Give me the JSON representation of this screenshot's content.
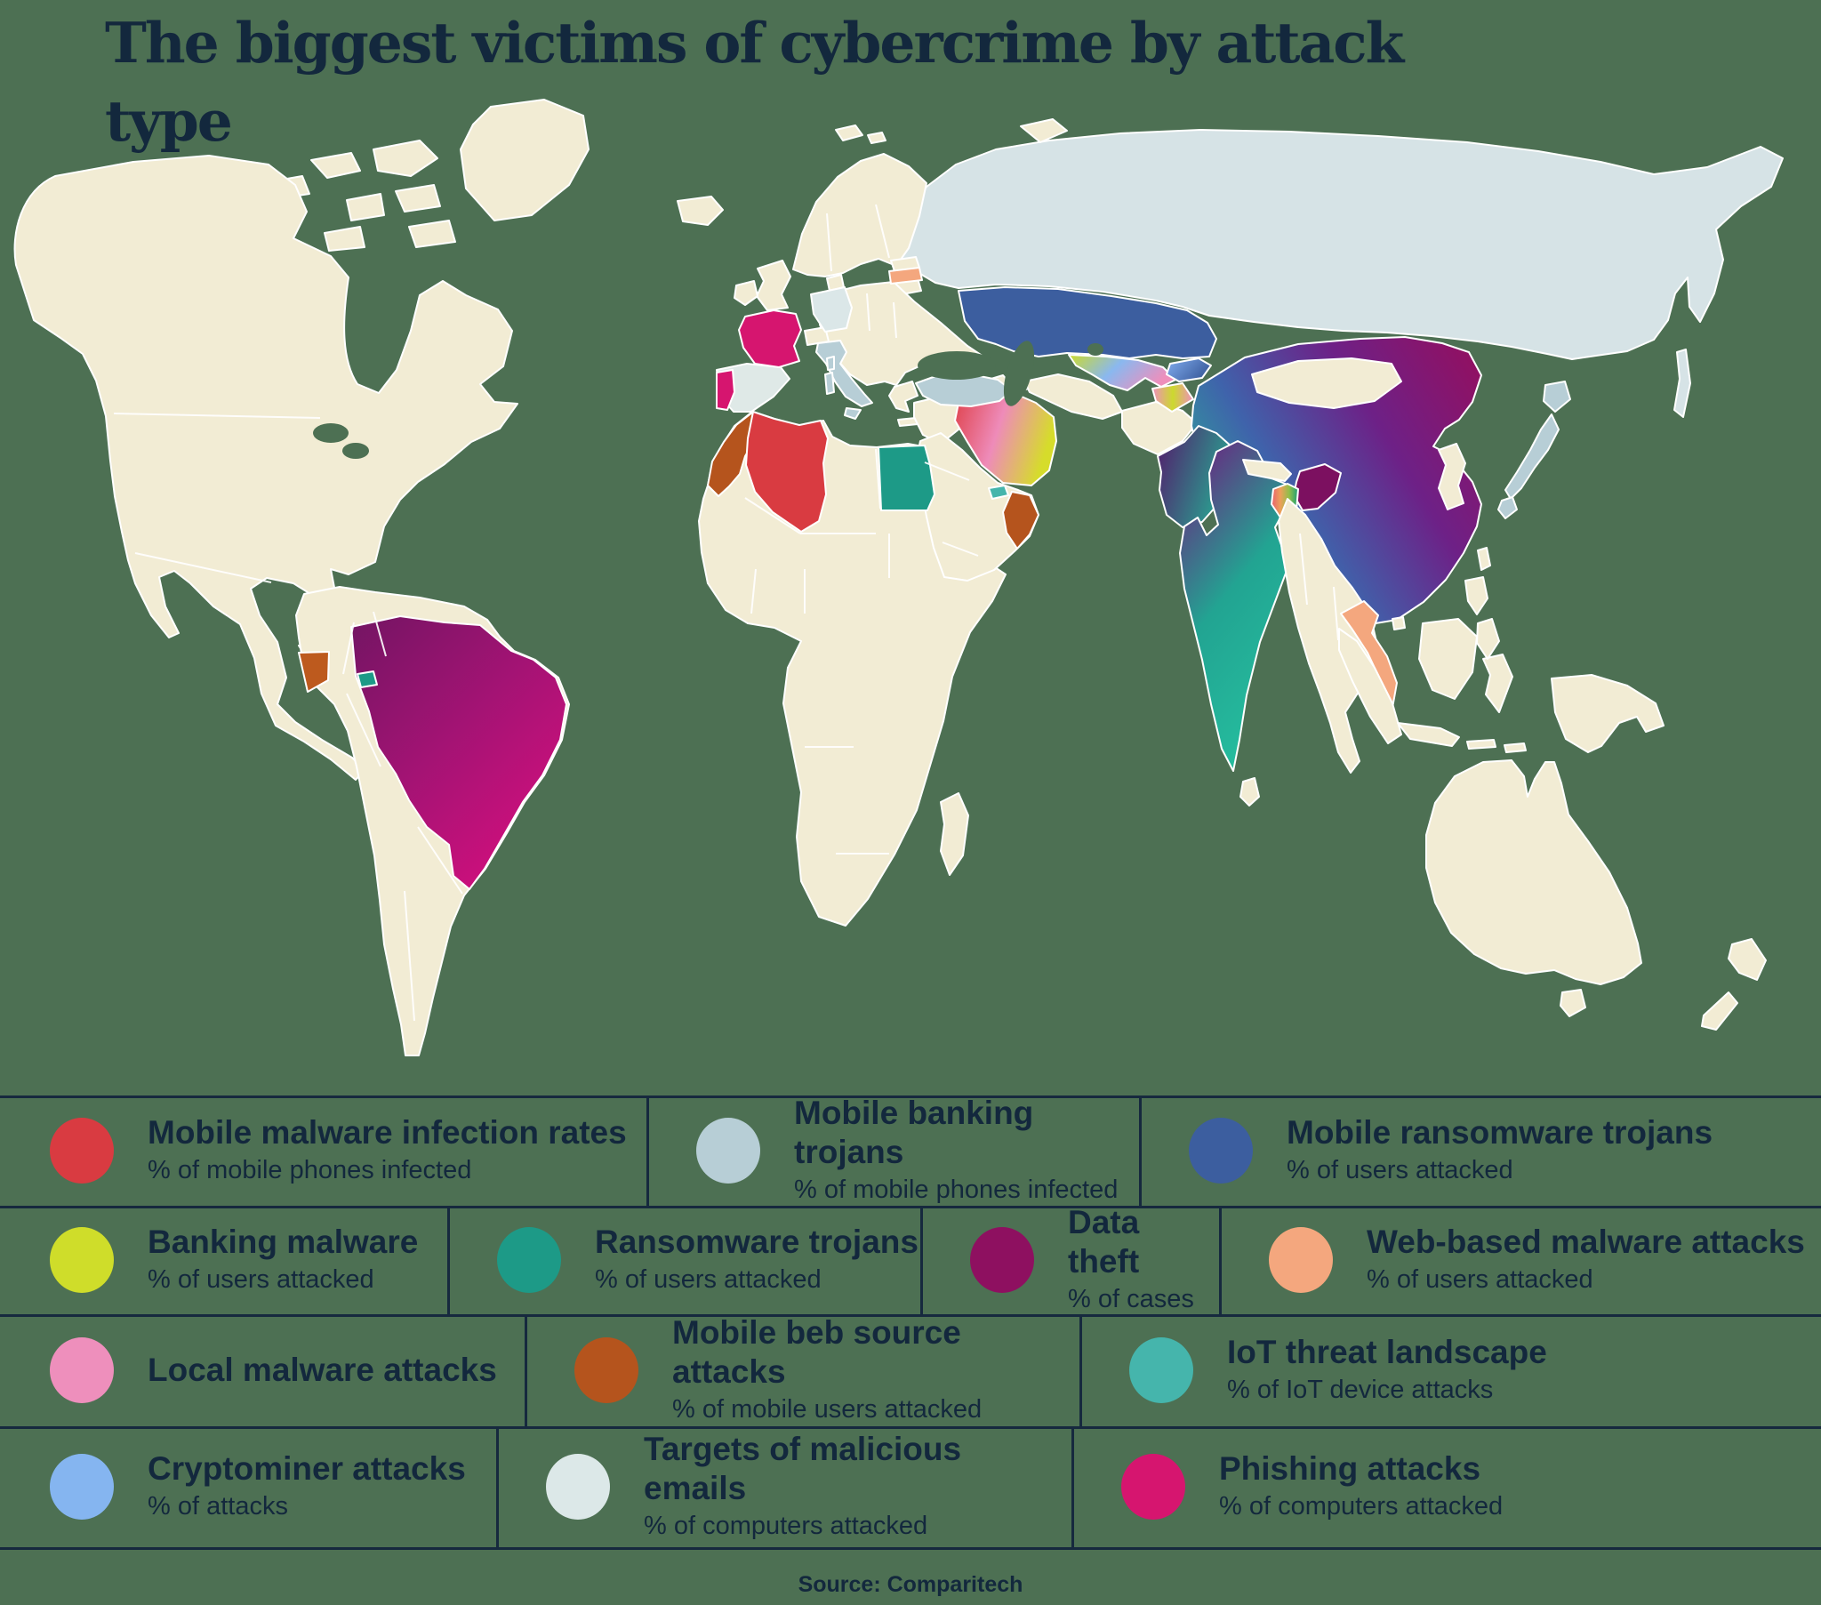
{
  "title": "The biggest victims of cybercrime by attack type",
  "source": "Source: Comparitech",
  "colors": {
    "background": "#4d7053",
    "land": "#f2ecd4",
    "country_border": "#ffffff",
    "ink": "#13283d",
    "grid_line": "#16293e"
  },
  "legend": {
    "rows": [
      {
        "cells": [
          {
            "key": "mobile-malware-infection-rates",
            "color": "#d93b41",
            "title": "Mobile malware infection rates",
            "subtitle": "% of mobile phones infected"
          },
          {
            "key": "mobile-banking-trojans",
            "color": "#b7ced6",
            "title": "Mobile banking trojans",
            "subtitle": "% of mobile phones infected"
          },
          {
            "key": "mobile-ransomware-trojans",
            "color": "#3c5e9f",
            "title": "Mobile ransomware trojans",
            "subtitle": "% of users attacked"
          }
        ]
      },
      {
        "cells": [
          {
            "key": "banking-malware",
            "color": "#cfdd2a",
            "title": "Banking malware",
            "subtitle": "% of users attacked"
          },
          {
            "key": "ransomware-trojans",
            "color": "#1d9a87",
            "title": "Ransomware trojans",
            "subtitle": "% of users attacked"
          },
          {
            "key": "data-theft",
            "color": "#8e1060",
            "title": "Data theft",
            "subtitle": "% of cases"
          },
          {
            "key": "web-based-malware-attacks",
            "color": "#f4a77e",
            "title": "Web-based malware attacks",
            "subtitle": "% of users attacked"
          }
        ]
      },
      {
        "cells": [
          {
            "key": "local-malware-attacks",
            "color": "#ee8fbc",
            "title": "Local malware attacks",
            "subtitle": ""
          },
          {
            "key": "mobile-beb-source-attacks",
            "color": "#b5541d",
            "title": "Mobile beb source attacks",
            "subtitle": "% of mobile users attacked"
          },
          {
            "key": "iot-threat-landscape",
            "color": "#45b5ac",
            "title": "IoT threat landscape",
            "subtitle": "% of IoT device attacks"
          }
        ]
      },
      {
        "cells": [
          {
            "key": "cryptominer-attacks",
            "color": "#85b5f0",
            "title": "Cryptominer attacks",
            "subtitle": "% of attacks"
          },
          {
            "key": "targets-of-malicious-emails",
            "color": "#dce8e8",
            "title": "Targets of malicious emails",
            "subtitle": "% of computers attacked"
          },
          {
            "key": "phishing-attacks",
            "color": "#d6156f",
            "title": "Phishing attacks",
            "subtitle": "% of computers attacked"
          }
        ]
      }
    ]
  },
  "map": {
    "countries": [
      {
        "id": "russia",
        "category": "targets-of-malicious-emails",
        "colors": [
          "#d6e3e6"
        ]
      },
      {
        "id": "sakhalin",
        "category": "targets-of-malicious-emails",
        "colors": [
          "#d6e3e6"
        ]
      },
      {
        "id": "germany",
        "category": "targets-of-malicious-emails",
        "colors": [
          "#dbe7e8"
        ]
      },
      {
        "id": "spain",
        "category": "targets-of-malicious-emails",
        "colors": [
          "#dfe9e7"
        ]
      },
      {
        "id": "italy",
        "category": "mobile-banking-trojans",
        "colors": [
          "#b7ced6"
        ]
      },
      {
        "id": "turkey",
        "category": "mobile-banking-trojans",
        "colors": [
          "#b7ced6"
        ]
      },
      {
        "id": "japan",
        "category": "mobile-banking-trojans",
        "colors": [
          "#b7ced6"
        ]
      },
      {
        "id": "france",
        "category": "phishing-attacks",
        "colors": [
          "#d6156f"
        ]
      },
      {
        "id": "portugal",
        "category": "phishing-attacks",
        "colors": [
          "#d6156f"
        ]
      },
      {
        "id": "latvia",
        "category": "web-based-malware-attacks",
        "colors": [
          "#f4a77e"
        ]
      },
      {
        "id": "vietnam",
        "category": "web-based-malware-attacks",
        "colors": [
          "#f4a77e"
        ]
      },
      {
        "id": "algeria",
        "category": "mobile-malware-infection-rates",
        "colors": [
          "#d93b41"
        ]
      },
      {
        "id": "azerbaijan",
        "category": "mobile-malware-infection-rates",
        "colors": [
          "#d93b41"
        ]
      },
      {
        "id": "armenia",
        "category": "local-malware-attacks",
        "colors": [
          "#ee8fbc"
        ]
      },
      {
        "id": "morocco",
        "category": "mobile-beb-source-attacks",
        "colors": [
          "#b5541d"
        ]
      },
      {
        "id": "oman",
        "category": "mobile-beb-source-attacks",
        "colors": [
          "#b5541d"
        ]
      },
      {
        "id": "ecuador",
        "category": "mobile-beb-source-attacks",
        "colors": [
          "#bd5a1e"
        ]
      },
      {
        "id": "uae",
        "category": "iot-threat-landscape",
        "colors": [
          "#45b5ac"
        ]
      },
      {
        "id": "egypt",
        "category": "ransomware-trojans",
        "colors": [
          "#1d9a87"
        ]
      },
      {
        "id": "haiti",
        "category": "ransomware-trojans",
        "colors": [
          "#1d9a87"
        ]
      },
      {
        "id": "kazakhstan",
        "category": "mobile-ransomware-trojans",
        "colors": [
          "#3c5e9f"
        ]
      },
      {
        "id": "kyrgyzstan",
        "category": "cryptominer-attacks + mobile-ransomware-trojans",
        "colors": [
          "#82aef0",
          "#3c5e9f"
        ],
        "dir": [
          0,
          0,
          1,
          0.5
        ]
      },
      {
        "id": "uzbekistan",
        "category": "banking-malware + cryptominer-attacks + local-malware-attacks",
        "colors": [
          "#ccdb2b",
          "#8ab8ef",
          "#ee8fbc"
        ],
        "dir": [
          0,
          0,
          1,
          0.35
        ]
      },
      {
        "id": "tajikistan",
        "category": "local-malware-attacks + banking-malware",
        "colors": [
          "#ee8fbc",
          "#ccd92e",
          "#ee8fbc"
        ],
        "dir": [
          0,
          0,
          1,
          0
        ]
      },
      {
        "id": "iran",
        "category": "mobile-malware-infection-rates + local-malware-attacks + banking-malware",
        "colors": [
          "#df4049",
          "#ee8bb9",
          "#d6dc2b"
        ],
        "dir": [
          0,
          0,
          1,
          0.3
        ]
      },
      {
        "id": "pakistan",
        "category": "data-theft + ransomware-trojans",
        "colors": [
          "#54196b",
          "#27a892"
        ],
        "dir": [
          0,
          0,
          1,
          0.4
        ]
      },
      {
        "id": "india",
        "category": "data-theft + iot-threat-landscape",
        "colors": [
          "#6d2080",
          "#22a492",
          "#25bd9e"
        ],
        "dir": [
          0.15,
          0,
          0.55,
          1
        ]
      },
      {
        "id": "india-ne",
        "category": "data-theft",
        "colors": [
          "#7c1060"
        ]
      },
      {
        "id": "bangladesh",
        "category": "multiple-attack-types",
        "colors": [
          "#e8606e",
          "#eda05a",
          "#8fbf4a",
          "#1b9d77"
        ],
        "dir": [
          0,
          0,
          1,
          0
        ]
      },
      {
        "id": "china",
        "category": "iot-threat-landscape + mobile-ransomware-trojans + data-theft",
        "colors": [
          "#29b694",
          "#3f63ab",
          "#6d2187",
          "#8f1164"
        ],
        "dir": [
          0,
          0.75,
          1,
          0.15
        ]
      },
      {
        "id": "brazil",
        "category": "data-theft + phishing-attacks",
        "colors": [
          "#731563",
          "#a41374",
          "#d60f7e"
        ],
        "dir": [
          0,
          0,
          0.8,
          1
        ]
      }
    ]
  }
}
